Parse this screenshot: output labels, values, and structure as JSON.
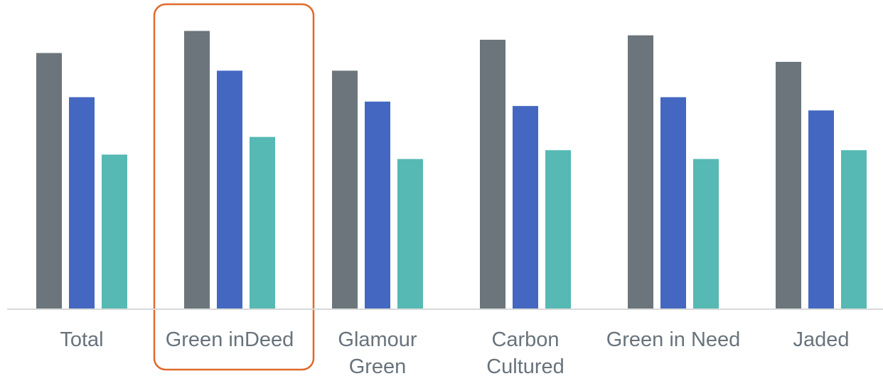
{
  "chart_data": {
    "type": "bar",
    "categories": [
      [
        "Total"
      ],
      [
        "Green inDeed"
      ],
      [
        "Glamour",
        "Green"
      ],
      [
        "Carbon",
        "Cultured"
      ],
      [
        "Green in Need"
      ],
      [
        "Jaded"
      ]
    ],
    "series": [
      {
        "color": "#6b757b",
        "values": [
          58,
          63,
          54,
          61,
          62,
          56
        ]
      },
      {
        "color": "#4468c1",
        "values": [
          48,
          54,
          47,
          46,
          48,
          45
        ]
      },
      {
        "color": "#56b9b3",
        "values": [
          35,
          39,
          34,
          36,
          34,
          36
        ]
      }
    ],
    "ylim": [
      0,
      70
    ],
    "grid": false,
    "legend": "none",
    "highlight": {
      "category_index": 1,
      "color": "#e06a2c"
    },
    "baseline_color": "#d9d9d9"
  }
}
